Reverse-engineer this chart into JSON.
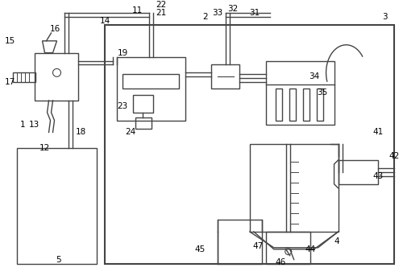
{
  "bg_color": "#ffffff",
  "lc": "#444444",
  "lw": 1.0,
  "lw2": 1.5,
  "fs": 7.5
}
